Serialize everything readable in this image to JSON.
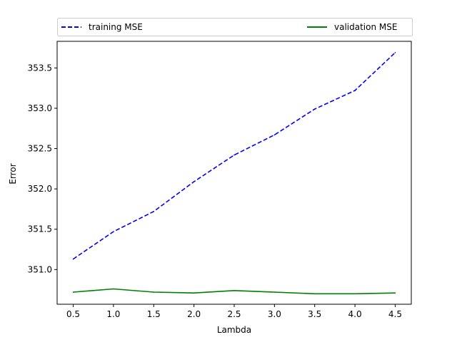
{
  "chart_data": {
    "type": "line",
    "xlabel": "Lambda",
    "ylabel": "Error",
    "x": [
      0.5,
      1.0,
      1.5,
      2.0,
      2.5,
      3.0,
      3.5,
      4.0,
      4.5
    ],
    "xlim": [
      0.3,
      4.7
    ],
    "ylim": [
      350.57,
      353.83
    ],
    "xticks": [
      "0.5",
      "1.0",
      "1.5",
      "2.0",
      "2.5",
      "3.0",
      "3.5",
      "4.0",
      "4.5"
    ],
    "yticks": [
      "351.0",
      "351.5",
      "352.0",
      "352.5",
      "353.0",
      "353.5"
    ],
    "grid": false,
    "legend_position": "top (above plot, spanning width)",
    "series": [
      {
        "name": "training MSE",
        "color": "#0000ff",
        "style": "dashed",
        "values": [
          351.13,
          351.47,
          351.72,
          352.09,
          352.42,
          352.67,
          352.99,
          353.22,
          353.69
        ]
      },
      {
        "name": "validation MSE",
        "color": "#008000",
        "style": "solid",
        "values": [
          350.72,
          350.76,
          350.72,
          350.71,
          350.74,
          350.72,
          350.7,
          350.7,
          350.71
        ]
      }
    ]
  }
}
